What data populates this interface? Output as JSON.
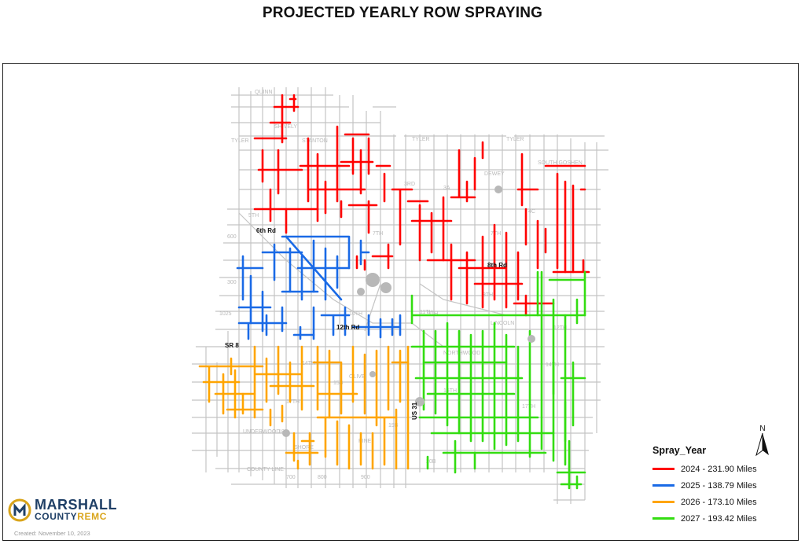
{
  "title": "PROJECTED YEARLY ROW SPRAYING",
  "colors": {
    "y2024": "#ff0000",
    "y2025": "#1a6ae6",
    "y2026": "#ffa500",
    "y2027": "#33dd11",
    "roads": "#c4c4c4"
  },
  "road_labels": {
    "r6th": "6th Rd",
    "r8th": "8th Rd",
    "r12th": "12th Rd",
    "sr8": "SR 8",
    "us31": "US 31"
  },
  "legend": {
    "title": "Spray_Year",
    "items": [
      {
        "label": "2024 - 231.90 Miles",
        "color": "#ff0000"
      },
      {
        "label": "2025 - 138.79 Miles",
        "color": "#1a6ae6"
      },
      {
        "label": "2026 - 173.10 Miles",
        "color": "#ffa500"
      },
      {
        "label": "2027 - 193.42 Miles",
        "color": "#33dd11"
      }
    ]
  },
  "north_arrow": {
    "letter": "N"
  },
  "logo": {
    "line1": "MARSHALL",
    "line2a": "COUNTY",
    "line2b": "REMC",
    "icon": "remc-logo-icon"
  },
  "created": "Created:  November 10, 2023",
  "background_labels": [
    "QUINN",
    "SHIVELY",
    "STANTON",
    "TYLER",
    "TYLER",
    "3RD",
    "3A",
    "4C",
    "5TH",
    "6TH",
    "7TH",
    "8TH",
    "9TH",
    "10TH",
    "11TH",
    "12TH",
    "14TH",
    "15B",
    "15TH",
    "17TH",
    "18A",
    "19B",
    "20B",
    "COUNTY LINE",
    "DEWEY",
    "SOUTH GOSHEN",
    "LINCOLN",
    "OLIVE",
    "PINE",
    "UNDERWOOD",
    "SHORE",
    "NORTHWOOD",
    "1025",
    "600",
    "300",
    "700",
    "800",
    "900"
  ]
}
